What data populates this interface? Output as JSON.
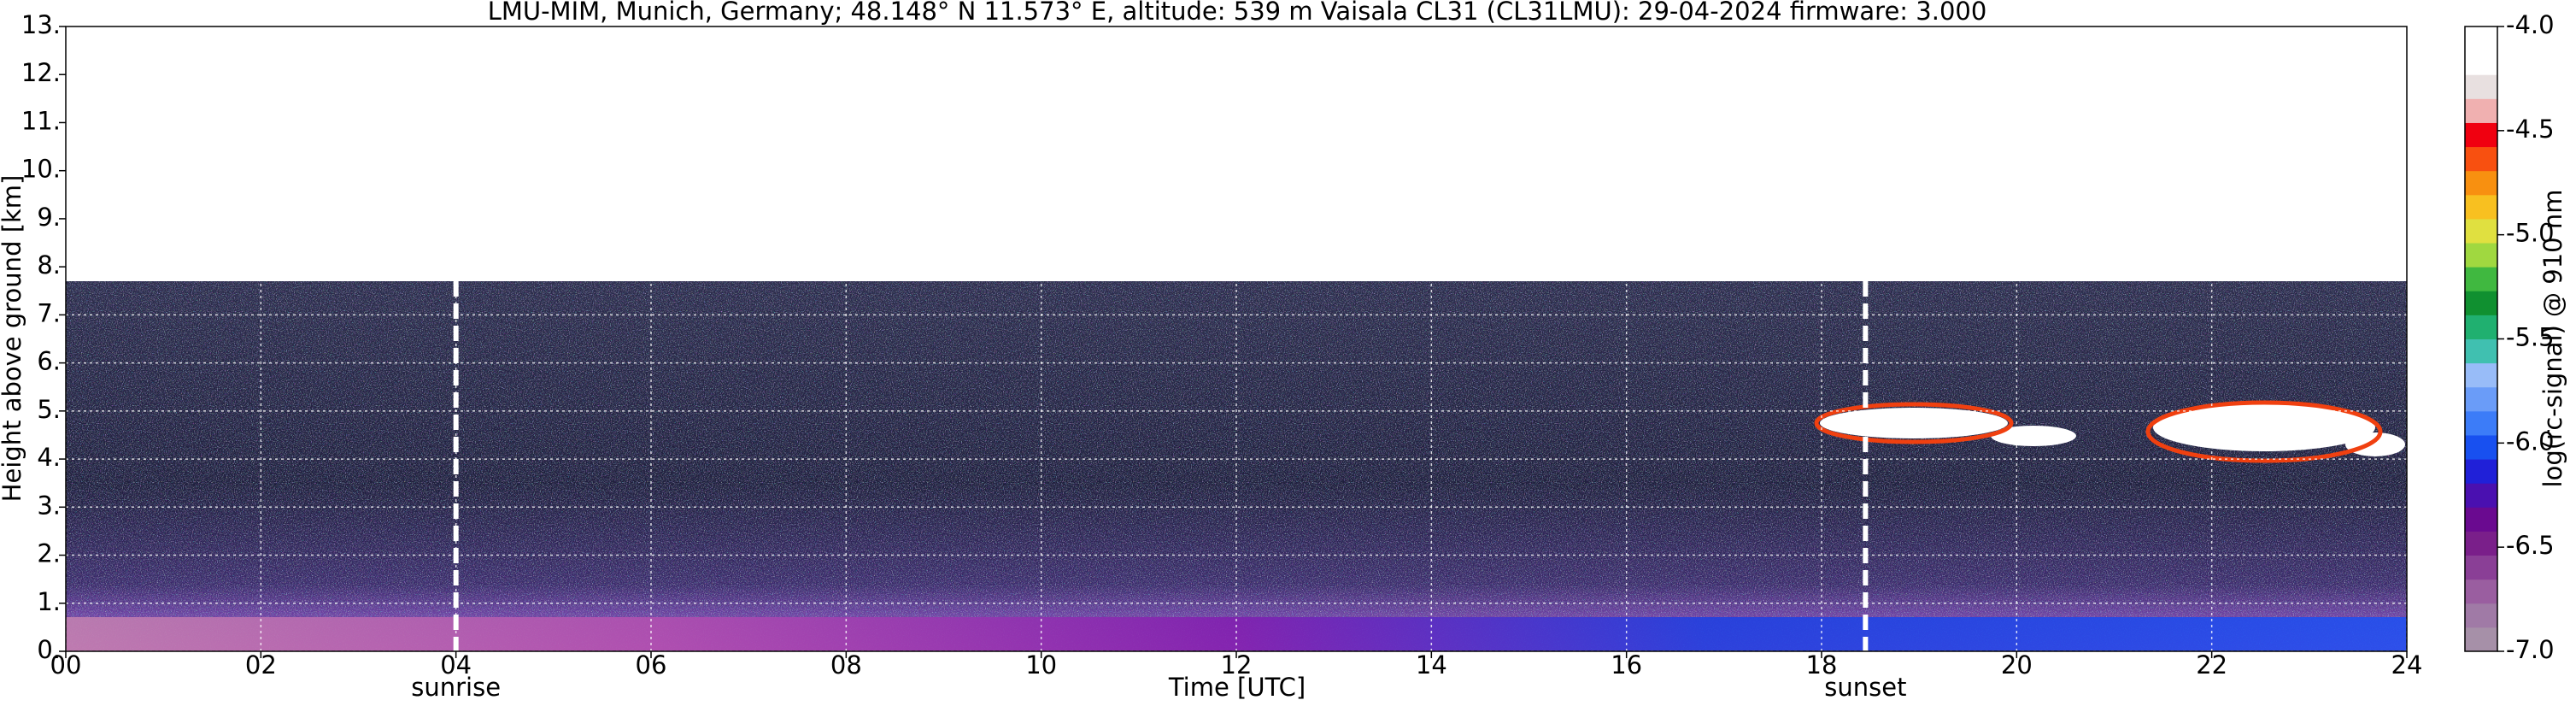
{
  "chart_data": {
    "type": "heatmap",
    "title": "LMU-MIM, Munich, Germany; 48.148° N 11.573° E, altitude: 539 m    Vaisala CL31 (CL31LMU): 29-04-2024    firmware: 3.000",
    "xlabel": "Time [UTC]",
    "ylabel": "Height above ground [km]",
    "xlim": [
      0,
      24
    ],
    "xticks": [
      {
        "value": 0,
        "label": "00"
      },
      {
        "value": 2,
        "label": "02"
      },
      {
        "value": 4,
        "label": "04"
      },
      {
        "value": 6,
        "label": "06"
      },
      {
        "value": 8,
        "label": "08"
      },
      {
        "value": 10,
        "label": "10"
      },
      {
        "value": 12,
        "label": "12"
      },
      {
        "value": 14,
        "label": "14"
      },
      {
        "value": 16,
        "label": "16"
      },
      {
        "value": 18,
        "label": "18"
      },
      {
        "value": 20,
        "label": "20"
      },
      {
        "value": 22,
        "label": "22"
      },
      {
        "value": 24,
        "label": "24"
      }
    ],
    "ylim": [
      0,
      13
    ],
    "yticks": [
      {
        "value": 0,
        "label": "0."
      },
      {
        "value": 1,
        "label": "1."
      },
      {
        "value": 2,
        "label": "2."
      },
      {
        "value": 3,
        "label": "3."
      },
      {
        "value": 4,
        "label": "4."
      },
      {
        "value": 5,
        "label": "5."
      },
      {
        "value": 6,
        "label": "6."
      },
      {
        "value": 7,
        "label": "7."
      },
      {
        "value": 8,
        "label": "8."
      },
      {
        "value": 9,
        "label": "9."
      },
      {
        "value": 10,
        "label": "10."
      },
      {
        "value": 11,
        "label": "11."
      },
      {
        "value": 12,
        "label": "12."
      },
      {
        "value": 13,
        "label": "13."
      }
    ],
    "grid": true,
    "annotations": [
      {
        "text": "sunrise",
        "x": 4
      },
      {
        "text": "sunset",
        "x": 18.45
      }
    ],
    "colorbar": {
      "label": "log(rc-signal) @ 910 nm",
      "lim": [
        -7,
        -4
      ],
      "ticks": [
        {
          "value": -7,
          "label": "-7.0"
        },
        {
          "value": -6.5,
          "label": "-6.5"
        },
        {
          "value": -6,
          "label": "-6.0"
        },
        {
          "value": -5.5,
          "label": "-5.5"
        },
        {
          "value": -5,
          "label": "-5.0"
        },
        {
          "value": -4.5,
          "label": "-4.5"
        },
        {
          "value": -4,
          "label": "-4.0"
        }
      ],
      "colors": [
        "#a690a8",
        "#a07aa6",
        "#9a5ea0",
        "#8a3f96",
        "#7a1f8a",
        "#6a0a90",
        "#4a10b0",
        "#2020d8",
        "#1850f0",
        "#3c7cf8",
        "#6a9cf8",
        "#98bcf8",
        "#40c0b0",
        "#20b070",
        "#109030",
        "#40b840",
        "#a0d840",
        "#e0e040",
        "#f8c020",
        "#f89010",
        "#f85010",
        "#f00010",
        "#f0b0b0",
        "#e8e0e0",
        "#ffffff",
        "#ffffff"
      ]
    }
  }
}
